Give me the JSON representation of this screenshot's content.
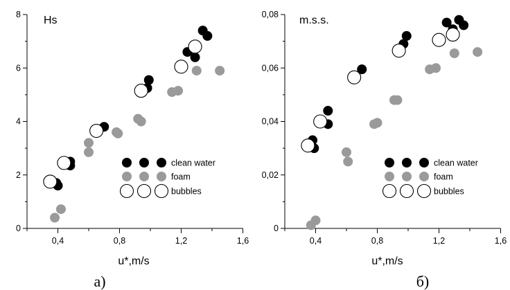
{
  "colors": {
    "clean": "#000000",
    "foam": "#9a9a9a",
    "bubbles_stroke": "#000000",
    "bubbles_fill": "#ffffff"
  },
  "chart_data": [
    {
      "type": "scatter",
      "panel_caption": "а)",
      "title": "Hs",
      "xlabel": "u*,m/s",
      "xlim": [
        0.2,
        1.6
      ],
      "ylim": [
        0,
        8
      ],
      "xticks": [
        "0,4",
        "0,8",
        "1,2",
        "1,6"
      ],
      "yticks": [
        "0",
        "2",
        "4",
        "6",
        "8"
      ],
      "legend_position": "lower-right",
      "series": [
        {
          "name": "clean water",
          "marker": "filled-black",
          "x": [
            0.39,
            0.4,
            0.48,
            0.48,
            0.66,
            0.7,
            0.98,
            0.99,
            1.24,
            1.29,
            1.34,
            1.37
          ],
          "y": [
            1.7,
            1.6,
            2.5,
            2.35,
            3.6,
            3.8,
            5.25,
            5.55,
            6.6,
            6.4,
            7.4,
            7.2
          ]
        },
        {
          "name": "foam",
          "marker": "filled-gray",
          "x": [
            0.38,
            0.42,
            0.6,
            0.6,
            0.78,
            0.79,
            0.92,
            0.94,
            1.14,
            1.18,
            1.3,
            1.45
          ],
          "y": [
            0.4,
            0.72,
            3.2,
            2.85,
            3.6,
            3.55,
            4.1,
            4.0,
            5.1,
            5.15,
            5.9,
            5.9
          ]
        },
        {
          "name": "bubbles",
          "marker": "open-circle",
          "x": [
            0.35,
            0.44,
            0.65,
            0.94,
            1.2,
            1.29
          ],
          "y": [
            1.75,
            2.45,
            3.65,
            5.15,
            6.05,
            6.8
          ]
        }
      ]
    },
    {
      "type": "scatter",
      "panel_caption": "б)",
      "title": "m.s.s.",
      "xlabel": "u*,m/s",
      "xlim": [
        0.2,
        1.6
      ],
      "ylim": [
        0,
        0.08
      ],
      "xticks": [
        "0,4",
        "0,8",
        "1,2",
        "1,6"
      ],
      "yticks": [
        "0",
        "0,02",
        "0,04",
        "0,06",
        "0,08"
      ],
      "legend_position": "lower-right",
      "series": [
        {
          "name": "clean water",
          "marker": "filled-black",
          "x": [
            0.38,
            0.39,
            0.48,
            0.48,
            0.66,
            0.7,
            0.97,
            0.99,
            1.25,
            1.29,
            1.33,
            1.36
          ],
          "y": [
            0.033,
            0.03,
            0.044,
            0.039,
            0.057,
            0.0595,
            0.069,
            0.072,
            0.077,
            0.0745,
            0.078,
            0.076
          ]
        },
        {
          "name": "foam",
          "marker": "filled-gray",
          "x": [
            0.37,
            0.4,
            0.6,
            0.61,
            0.78,
            0.8,
            0.91,
            0.93,
            1.14,
            1.18,
            1.3,
            1.45
          ],
          "y": [
            0.0012,
            0.003,
            0.0285,
            0.025,
            0.039,
            0.0395,
            0.048,
            0.048,
            0.0595,
            0.06,
            0.0655,
            0.066
          ]
        },
        {
          "name": "bubbles",
          "marker": "open-circle",
          "x": [
            0.35,
            0.43,
            0.65,
            0.94,
            1.2,
            1.29
          ],
          "y": [
            0.031,
            0.04,
            0.0565,
            0.0665,
            0.0705,
            0.0725
          ]
        }
      ]
    }
  ]
}
